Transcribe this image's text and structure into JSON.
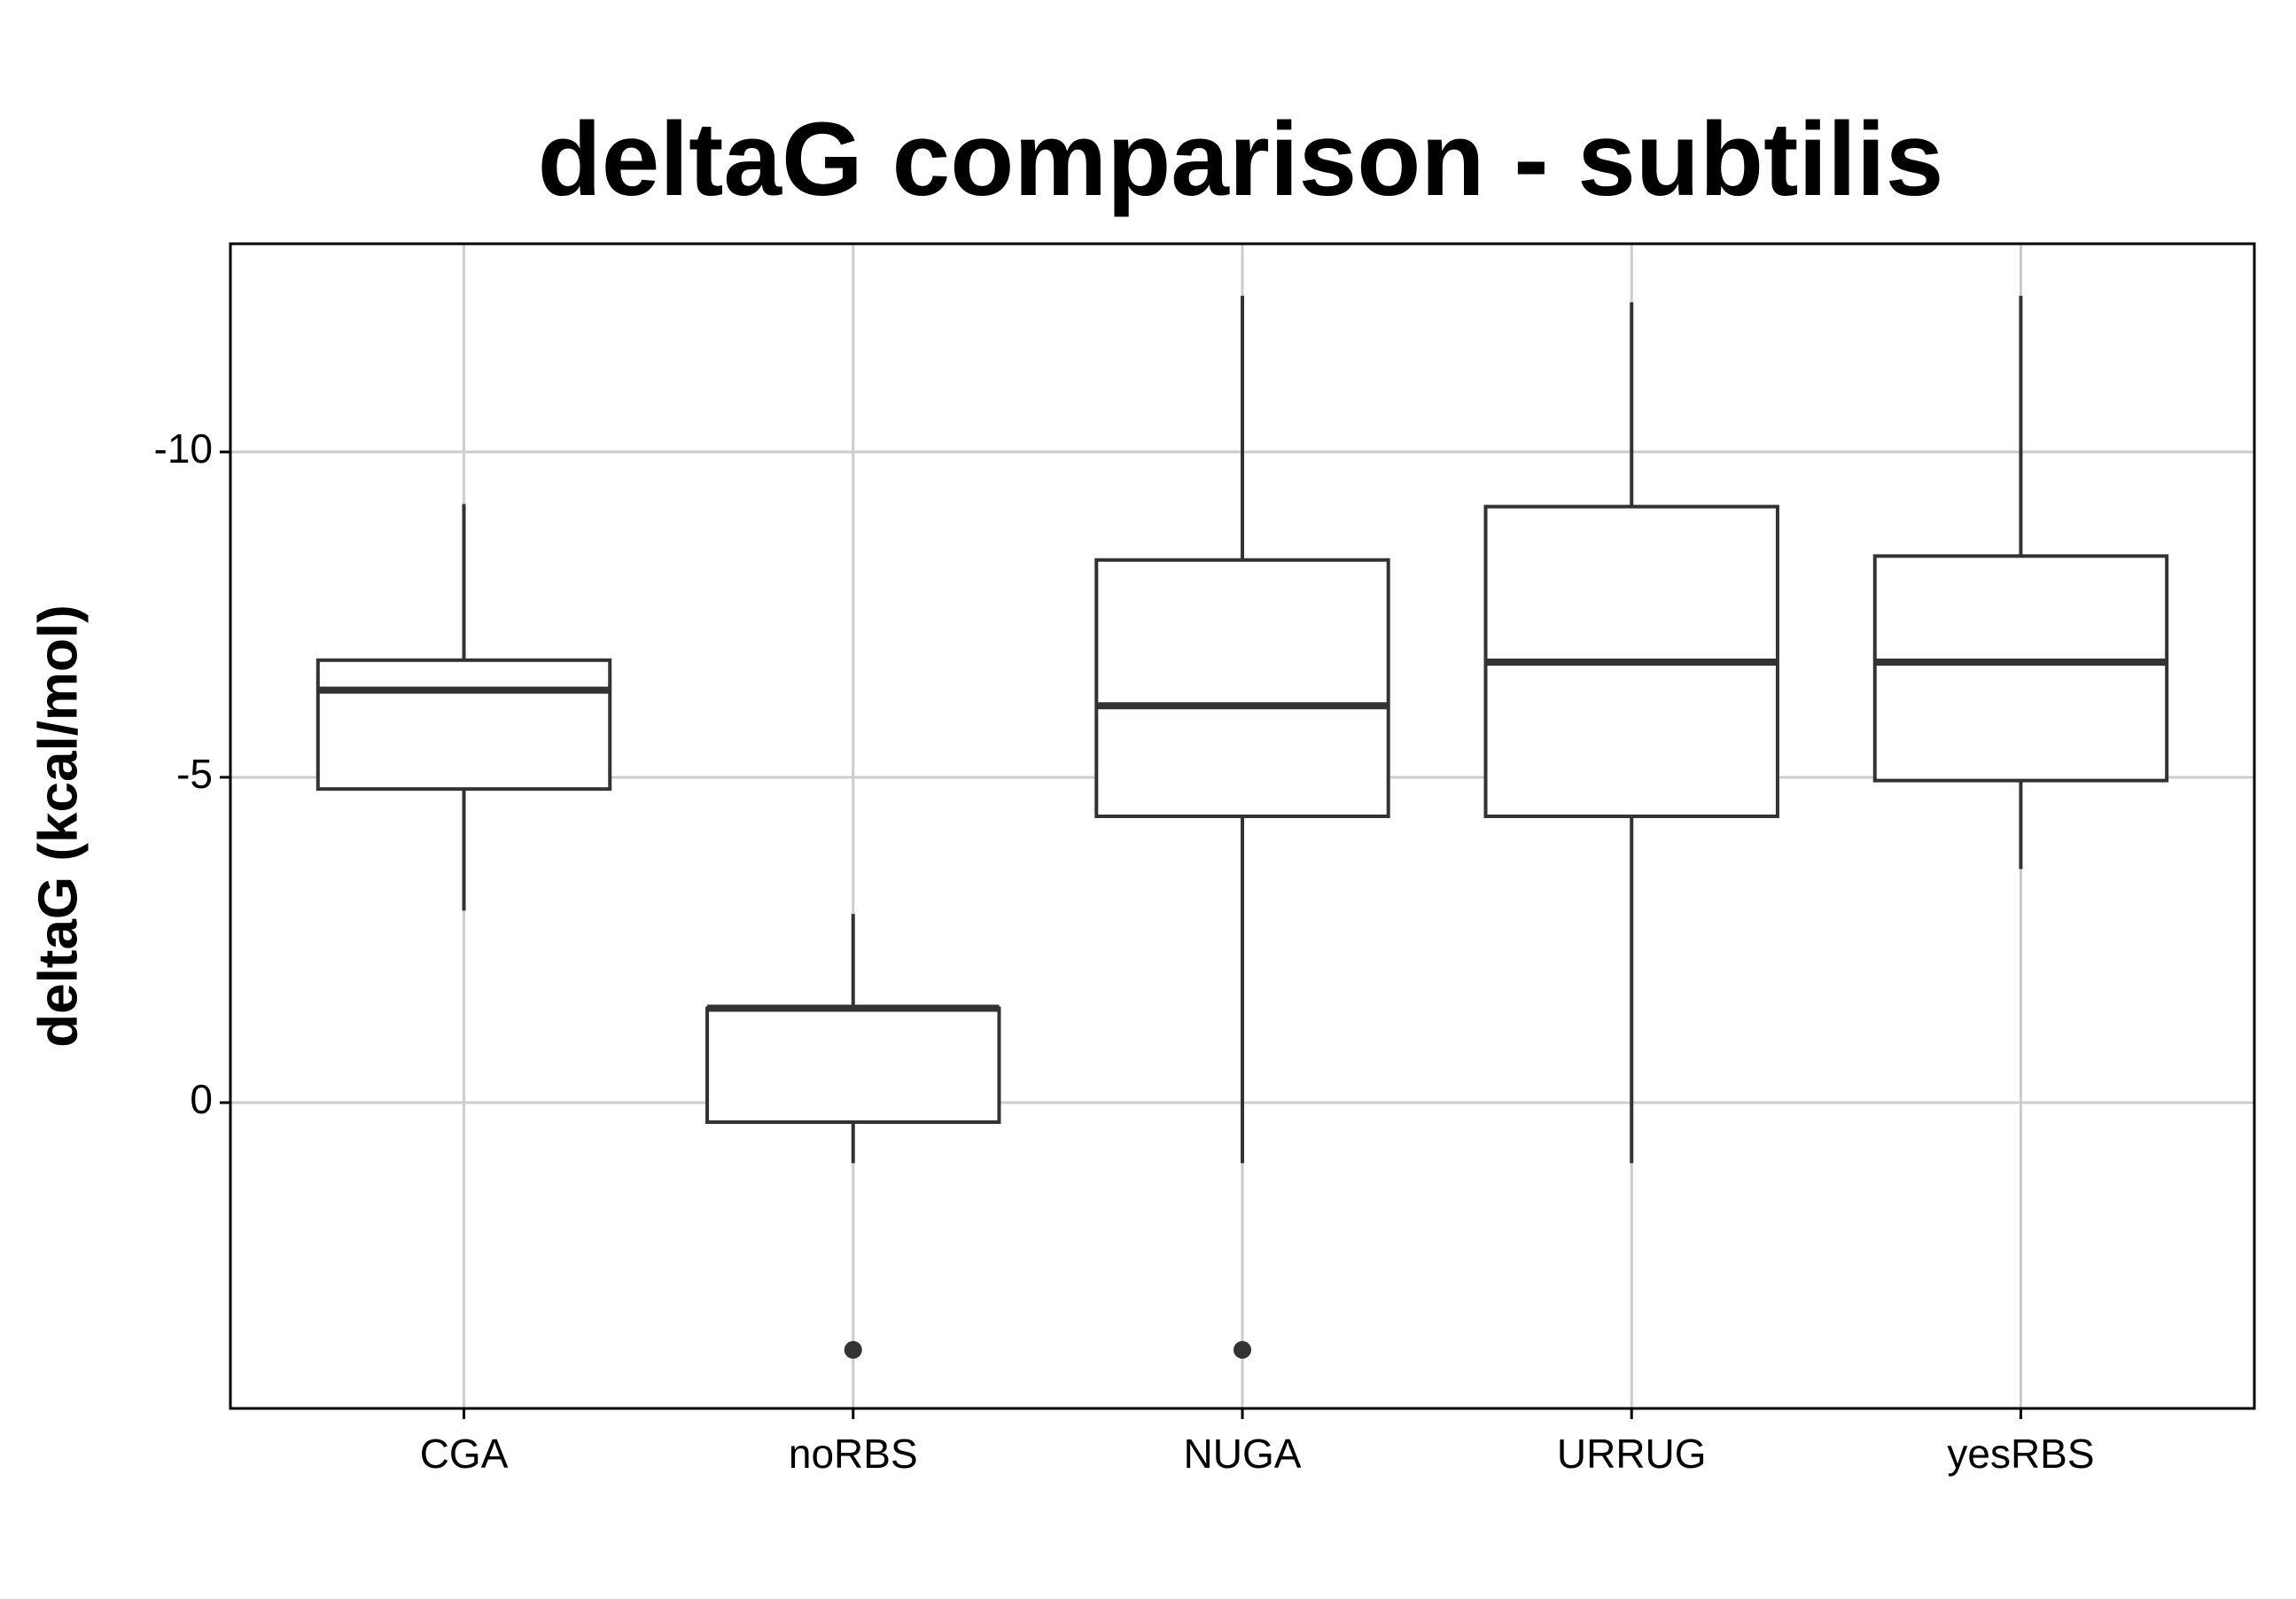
{
  "chart_data": {
    "type": "box",
    "title": "deltaG comparison - subtilis",
    "y_label": "deltaG (kcal/mol)",
    "categories": [
      "CGA",
      "noRBS",
      "NUGA",
      "URRUG",
      "yesRBS"
    ],
    "whisker_high": [
      -9.2,
      -2.9,
      -12.4,
      -12.3,
      -12.4
    ],
    "q3": [
      -6.8,
      -1.45,
      -8.34,
      -9.16,
      -8.4
    ],
    "median": [
      -6.34,
      -1.45,
      -6.1,
      -6.77,
      -6.77
    ],
    "q1": [
      -4.82,
      0.3,
      -4.4,
      -4.4,
      -4.95
    ],
    "whisker_low": [
      -2.95,
      0.93,
      0.93,
      0.93,
      -3.59
    ],
    "outliers": [
      [],
      [
        3.8
      ],
      [
        3.8
      ],
      [],
      []
    ],
    "ylim": [
      -13.2,
      4.7
    ],
    "y_reversed": true,
    "yticks": [
      -10,
      -5,
      0
    ],
    "grid": true,
    "color": "#333333"
  }
}
